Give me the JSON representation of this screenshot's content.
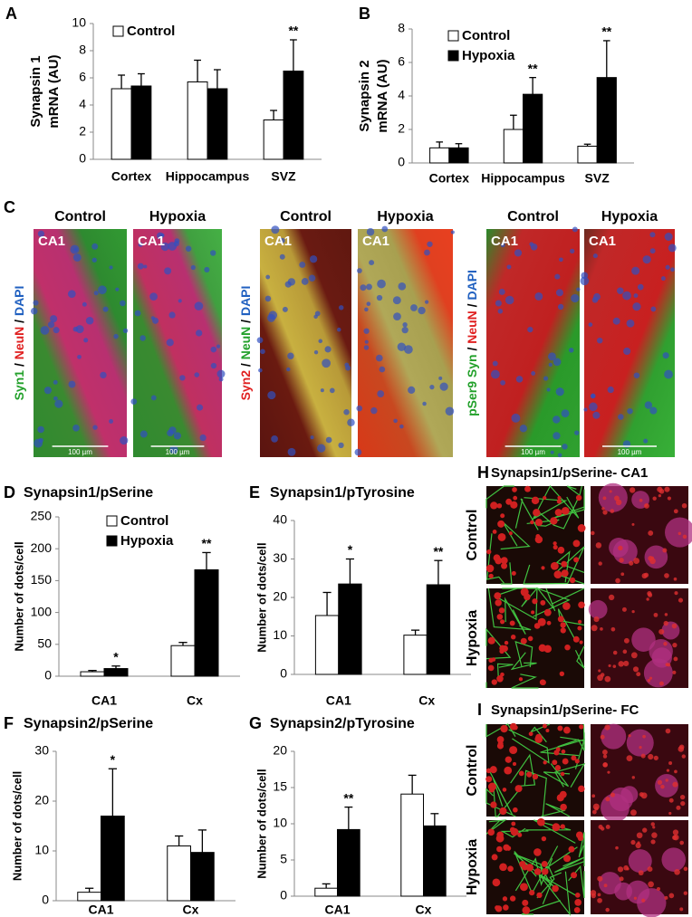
{
  "chart_data": [
    {
      "panel": "A",
      "type": "bar",
      "ylabel": [
        "Synapsin 1",
        "mRNA (AU)"
      ],
      "categories": [
        "Cortex",
        "Hippocampus",
        "SVZ"
      ],
      "series": [
        {
          "name": "Control",
          "color": "#ffffff",
          "values": [
            5.2,
            5.7,
            2.9
          ],
          "errors": [
            1.0,
            1.6,
            0.7
          ]
        },
        {
          "color": "#000000",
          "values": [
            5.4,
            5.2,
            6.5
          ],
          "errors": [
            0.9,
            1.4,
            2.3
          ],
          "significance": [
            null,
            null,
            "**"
          ]
        }
      ],
      "ylim": [
        0,
        10
      ],
      "yticks": [
        0,
        2,
        4,
        6,
        8,
        10
      ]
    },
    {
      "panel": "B",
      "type": "bar",
      "ylabel": [
        "Synapsin 2",
        "mRNA (AU)"
      ],
      "categories": [
        "Cortex",
        "Hippocampus",
        "SVZ"
      ],
      "series": [
        {
          "name": "Control",
          "color": "#ffffff",
          "values": [
            0.9,
            2.0,
            1.0
          ],
          "errors": [
            0.35,
            0.85,
            0.12
          ]
        },
        {
          "name": "Hypoxia",
          "color": "#000000",
          "values": [
            0.9,
            4.1,
            5.1
          ],
          "errors": [
            0.25,
            1.0,
            2.2
          ],
          "significance": [
            null,
            "**",
            "**"
          ]
        }
      ],
      "ylim": [
        0,
        8
      ],
      "yticks": [
        0,
        2,
        4,
        6,
        8
      ]
    },
    {
      "panel": "D",
      "type": "bar",
      "title": "Synapsin1/pSerine",
      "ylabel": "Number of dots/cell",
      "categories": [
        "CA1",
        "Cx"
      ],
      "series": [
        {
          "name": "Control",
          "color": "#ffffff",
          "values": [
            7,
            48
          ],
          "errors": [
            2,
            5
          ]
        },
        {
          "name": "Hypoxia",
          "color": "#000000",
          "values": [
            12,
            167
          ],
          "errors": [
            4,
            27
          ],
          "significance": [
            "*",
            "**"
          ]
        }
      ],
      "ylim": [
        0,
        250
      ],
      "yticks": [
        0,
        50,
        100,
        150,
        200,
        250
      ]
    },
    {
      "panel": "E",
      "type": "bar",
      "title": "Synapsin1/pTyrosine",
      "ylabel": "Number of dots/cell",
      "categories": [
        "CA1",
        "Cx"
      ],
      "series": [
        {
          "color": "#ffffff",
          "values": [
            15.3,
            10.2
          ],
          "errors": [
            6,
            1.3
          ]
        },
        {
          "color": "#000000",
          "values": [
            23.5,
            23.3
          ],
          "errors": [
            6.5,
            6.3
          ],
          "significance": [
            "*",
            "**"
          ]
        }
      ],
      "ylim": [
        0,
        40
      ],
      "yticks": [
        0,
        10,
        20,
        30,
        40
      ]
    },
    {
      "panel": "F",
      "type": "bar",
      "title": "Synapsin2/pSerine",
      "ylabel": "Number of dots/cell",
      "categories": [
        "CA1",
        "Cx"
      ],
      "series": [
        {
          "color": "#ffffff",
          "values": [
            1.7,
            11
          ],
          "errors": [
            0.8,
            2
          ]
        },
        {
          "color": "#000000",
          "values": [
            17,
            9.7
          ],
          "errors": [
            9.5,
            4.5
          ],
          "significance": [
            "*",
            null
          ]
        }
      ],
      "ylim": [
        0,
        30
      ],
      "yticks": [
        0,
        10,
        20,
        30
      ]
    },
    {
      "panel": "G",
      "type": "bar",
      "title": "Synapsin2/pTyrosine",
      "ylabel": "Number of dots/cell",
      "categories": [
        "CA1",
        "Cx"
      ],
      "series": [
        {
          "color": "#ffffff",
          "values": [
            1.1,
            14.1
          ],
          "errors": [
            0.6,
            2.6
          ]
        },
        {
          "color": "#000000",
          "values": [
            9.2,
            9.7
          ],
          "errors": [
            3.1,
            1.7
          ],
          "significance": [
            "**",
            null
          ]
        }
      ],
      "ylim": [
        0,
        20
      ],
      "yticks": [
        0,
        5,
        10,
        15,
        20
      ]
    }
  ],
  "panel_c": {
    "label": "C",
    "groups": [
      {
        "headers": [
          "Control",
          "Hypoxia"
        ],
        "region": "CA1",
        "scale": "100 µm",
        "stain": [
          {
            "text": "Syn1",
            "color": "#22a02a"
          },
          {
            "text": " / "
          },
          {
            "text": "NeuN",
            "color": "#e02020"
          },
          {
            "text": " / "
          },
          {
            "text": "DAPI",
            "color": "#2060c0"
          }
        ]
      },
      {
        "headers": [
          "Control",
          "Hypoxia"
        ],
        "region": "CA1",
        "stain": [
          {
            "text": "Syn2",
            "color": "#e02020"
          },
          {
            "text": " / "
          },
          {
            "text": "NeuN",
            "color": "#22a02a"
          },
          {
            "text": " / "
          },
          {
            "text": "DAPI",
            "color": "#2060c0"
          }
        ]
      },
      {
        "headers": [
          "Control",
          "Hypoxia"
        ],
        "region": "CA1",
        "scale": "100 µm",
        "stain": [
          {
            "text": "pSer9 Syn",
            "color": "#22a02a"
          },
          {
            "text": " / "
          },
          {
            "text": "NeuN",
            "color": "#e02020"
          },
          {
            "text": " / "
          },
          {
            "text": "DAPI",
            "color": "#2060c0"
          }
        ]
      }
    ]
  },
  "panel_h": {
    "label": "H",
    "title": "Synapsin1/pSerine- CA1",
    "rows": [
      "Control",
      "Hypoxia"
    ]
  },
  "panel_i": {
    "label": "I",
    "title": "Synapsin1/pSerine- FC",
    "rows": [
      "Control",
      "Hypoxia"
    ]
  }
}
